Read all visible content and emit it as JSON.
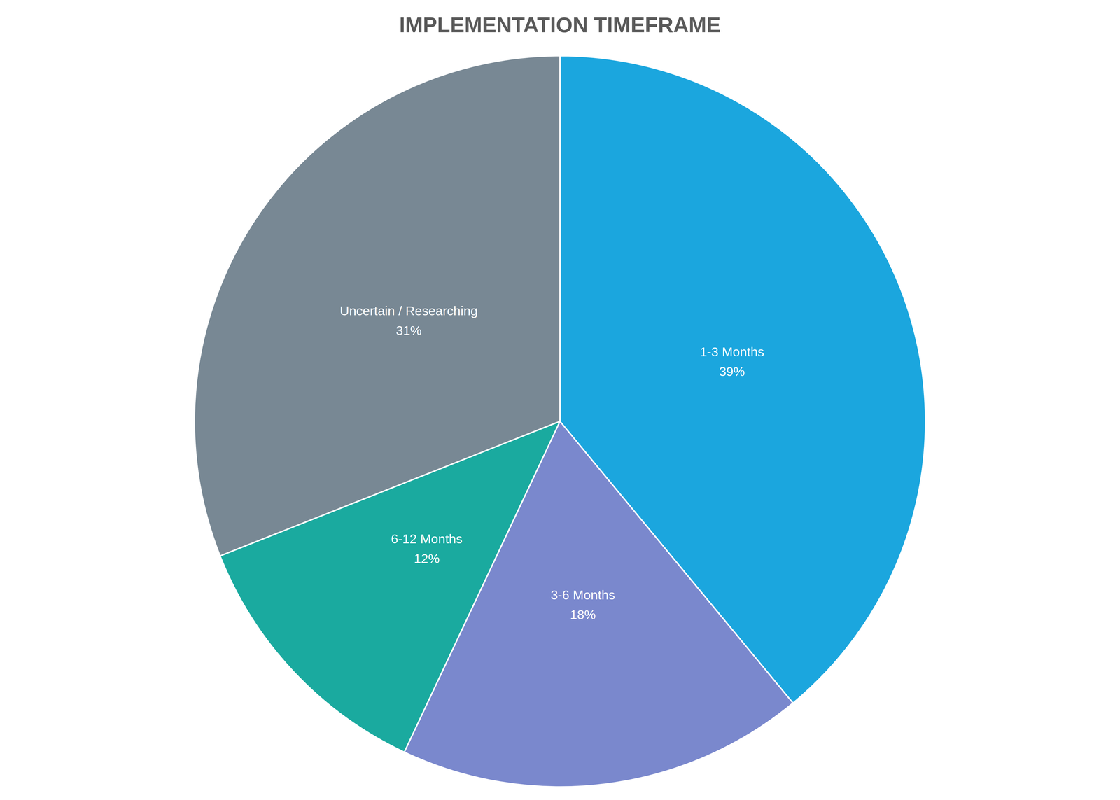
{
  "chart_data": {
    "type": "pie",
    "title": "IMPLEMENTATION TIMEFRAME",
    "categories": [
      "1-3 Months",
      "3-6 Months",
      "6-12 Months",
      "Uncertain / Researching"
    ],
    "values": [
      39,
      18,
      12,
      31
    ],
    "value_labels": [
      "39%",
      "18%",
      "12%",
      "31%"
    ],
    "colors": [
      "#1ba6de",
      "#7a88cd",
      "#1aaa9f",
      "#788894"
    ],
    "data_labels": true
  }
}
